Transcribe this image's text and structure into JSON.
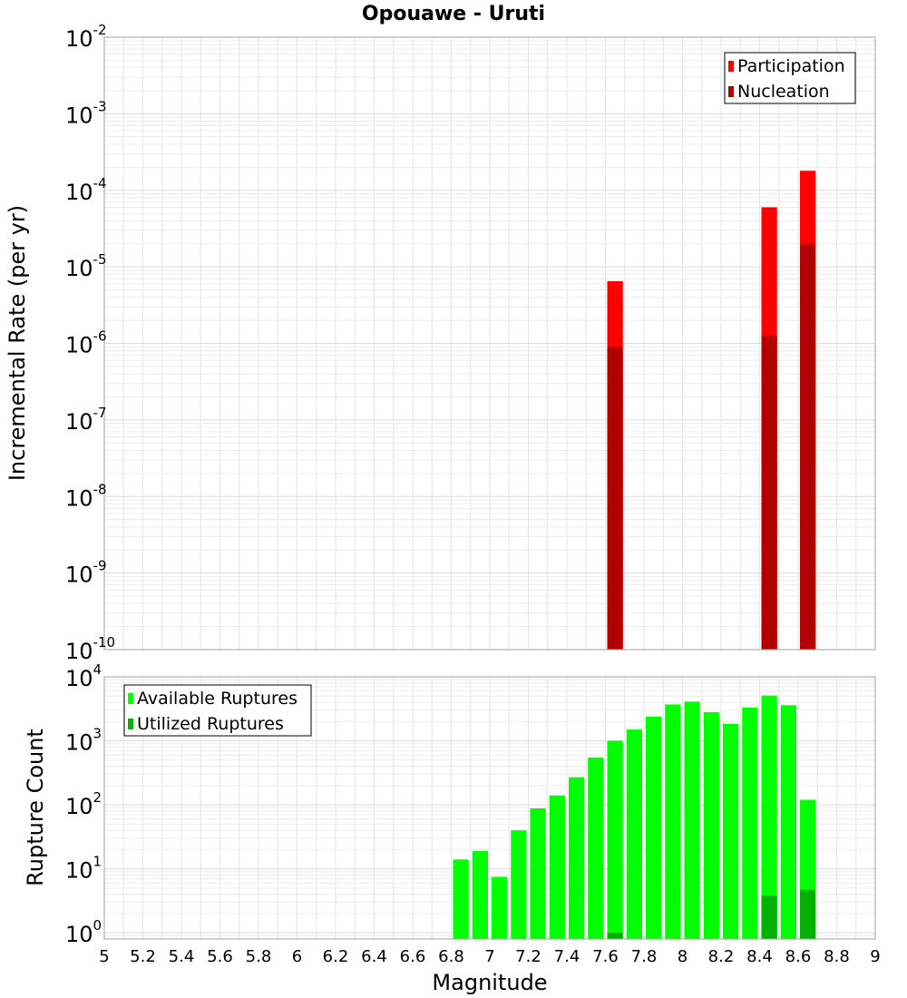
{
  "chart_data": [
    {
      "type": "bar",
      "title": "Opouawe - Uruti",
      "xlabel": "Magnitude",
      "ylabel": "Incremental Rate (per yr)",
      "yscale": "log",
      "ylim": [
        1e-10,
        0.01
      ],
      "xlim": [
        5,
        9
      ],
      "grid": true,
      "legend_position": "top-right",
      "y_ticks": [
        {
          "base": "10",
          "exp": "-10",
          "value": 1e-10
        },
        {
          "base": "10",
          "exp": "-9",
          "value": 1e-09
        },
        {
          "base": "10",
          "exp": "-8",
          "value": 1e-08
        },
        {
          "base": "10",
          "exp": "-7",
          "value": 1e-07
        },
        {
          "base": "10",
          "exp": "-6",
          "value": 1e-06
        },
        {
          "base": "10",
          "exp": "-5",
          "value": 1e-05
        },
        {
          "base": "10",
          "exp": "-4",
          "value": 0.0001
        },
        {
          "base": "10",
          "exp": "-3",
          "value": 0.001
        },
        {
          "base": "10",
          "exp": "-2",
          "value": 0.01
        }
      ],
      "series": [
        {
          "name": "Participation",
          "color": "#ff0000",
          "points": [
            {
              "x": 7.65,
              "y": 6.5e-06
            },
            {
              "x": 8.45,
              "y": 6e-05
            },
            {
              "x": 8.65,
              "y": 0.00018
            }
          ]
        },
        {
          "name": "Nucleation",
          "color": "#b20000",
          "points": [
            {
              "x": 7.65,
              "y": 9e-07
            },
            {
              "x": 8.45,
              "y": 1.25e-06
            },
            {
              "x": 8.65,
              "y": 2e-05
            }
          ]
        }
      ]
    },
    {
      "type": "bar",
      "title": "",
      "xlabel": "Magnitude",
      "ylabel": "Rupture Count",
      "yscale": "log",
      "ylim": [
        0.8,
        10000
      ],
      "xlim": [
        5,
        9
      ],
      "grid": true,
      "legend_position": "top-left",
      "y_ticks": [
        {
          "base": "10",
          "exp": "0",
          "value": 1
        },
        {
          "base": "10",
          "exp": "1",
          "value": 10
        },
        {
          "base": "10",
          "exp": "2",
          "value": 100
        },
        {
          "base": "10",
          "exp": "3",
          "value": 1000
        },
        {
          "base": "10",
          "exp": "4",
          "value": 10000
        }
      ],
      "x_tick_labels": [
        "5",
        "5.2",
        "5.4",
        "5.6",
        "5.8",
        "6",
        "6.2",
        "6.4",
        "6.6",
        "6.8",
        "7",
        "7.2",
        "7.4",
        "7.6",
        "7.8",
        "8",
        "8.2",
        "8.4",
        "8.6",
        "8.8",
        "9"
      ],
      "series": [
        {
          "name": "Available Ruptures",
          "color": "#00ff00",
          "points": [
            {
              "x": 6.85,
              "y": 14
            },
            {
              "x": 6.95,
              "y": 19
            },
            {
              "x": 7.05,
              "y": 7.5
            },
            {
              "x": 7.15,
              "y": 40
            },
            {
              "x": 7.25,
              "y": 88
            },
            {
              "x": 7.35,
              "y": 140
            },
            {
              "x": 7.45,
              "y": 270
            },
            {
              "x": 7.55,
              "y": 550
            },
            {
              "x": 7.65,
              "y": 1000
            },
            {
              "x": 7.75,
              "y": 1500
            },
            {
              "x": 7.85,
              "y": 2400
            },
            {
              "x": 7.95,
              "y": 3700
            },
            {
              "x": 8.05,
              "y": 4100
            },
            {
              "x": 8.15,
              "y": 2800
            },
            {
              "x": 8.25,
              "y": 1850
            },
            {
              "x": 8.35,
              "y": 3300
            },
            {
              "x": 8.45,
              "y": 5100
            },
            {
              "x": 8.55,
              "y": 3600
            },
            {
              "x": 8.65,
              "y": 120
            }
          ]
        },
        {
          "name": "Utilized Ruptures",
          "color": "#00b200",
          "points": [
            {
              "x": 7.65,
              "y": 1
            },
            {
              "x": 8.45,
              "y": 3.8
            },
            {
              "x": 8.65,
              "y": 4.7
            }
          ]
        }
      ]
    }
  ]
}
